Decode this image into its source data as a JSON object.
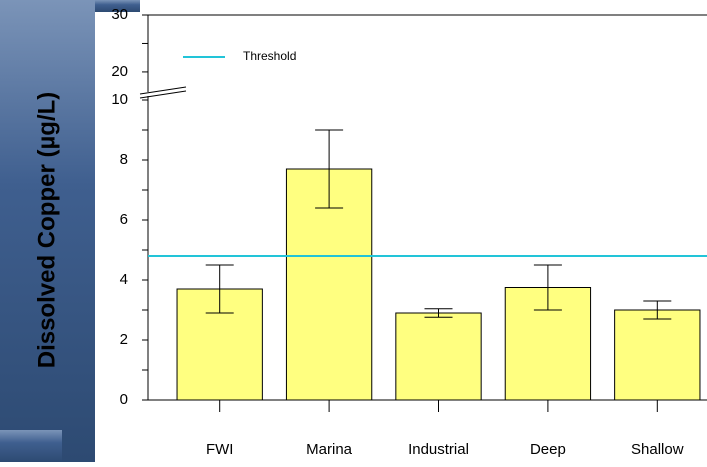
{
  "chart_data": {
    "type": "bar",
    "y_label": "Dissolved Copper (µg/L)",
    "categories": [
      "FWI",
      "Marina",
      "Industrial",
      "Deep",
      "Shallow"
    ],
    "values": [
      3.7,
      7.7,
      2.9,
      3.75,
      3.0
    ],
    "errors": [
      0.8,
      1.3,
      0.14,
      0.75,
      0.3
    ],
    "color": "#ffff80",
    "ylim": [
      0,
      10
    ],
    "yticks": [
      0,
      2,
      4,
      6,
      8,
      10
    ],
    "yticks_minor": [
      1,
      3,
      5,
      7,
      9
    ],
    "ylim_upper": [
      17,
      30
    ],
    "yticks_upper": [
      20,
      30
    ],
    "yticks_upper_minor": [
      25
    ],
    "threshold": {
      "name": "Threshold",
      "value": 4.8,
      "color": "#22c4d8"
    },
    "grid": false
  }
}
